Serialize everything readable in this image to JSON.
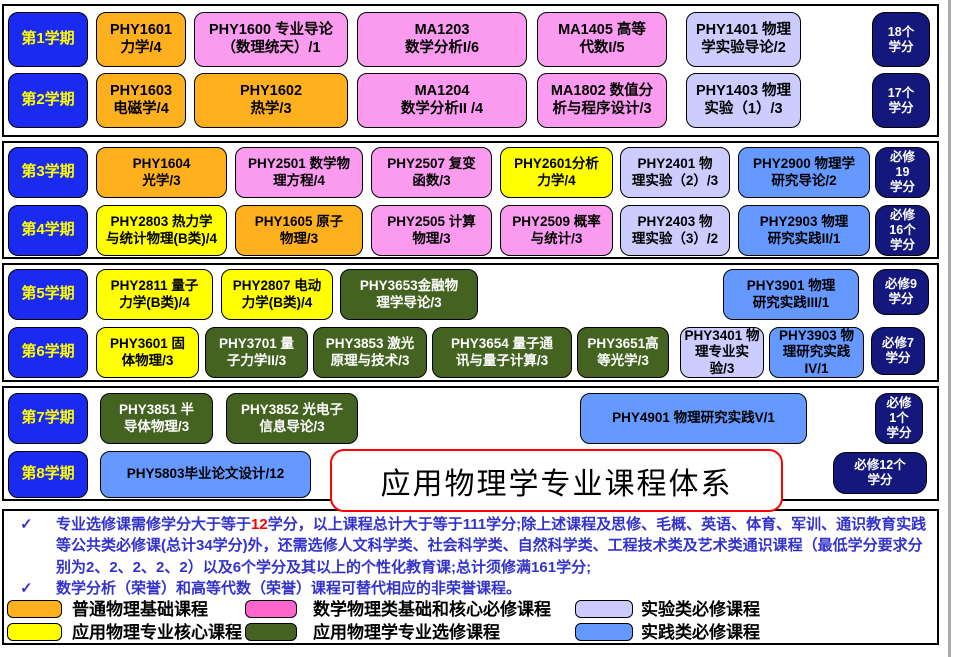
{
  "title": "应用物理学专业课程体系",
  "semesters": [
    {
      "label": "第1学期",
      "credit": "18个\n学分",
      "courses": [
        {
          "label": "PHY1601\n力学/4",
          "type": "orange"
        },
        {
          "label": "PHY1600 专业导论\n（数理统天）/1",
          "type": "pink"
        },
        {
          "label": "MA1203\n数学分析I/6",
          "type": "pink"
        },
        {
          "label": "MA1405 高等\n代数I/5",
          "type": "pink"
        },
        {
          "label": "PHY1401 物理\n学实验导论/2",
          "type": "lav"
        }
      ]
    },
    {
      "label": "第2学期",
      "credit": "17个\n学分",
      "courses": [
        {
          "label": "PHY1603\n电磁学/4",
          "type": "orange"
        },
        {
          "label": "PHY1602\n热学/3",
          "type": "orange"
        },
        {
          "label": "MA1204\n数学分析II /4",
          "type": "pink"
        },
        {
          "label": "MA1802 数值分\n析与程序设计/3",
          "type": "pink"
        },
        {
          "label": "PHY1403 物理\n实验（1）/3",
          "type": "lav"
        }
      ]
    },
    {
      "label": "第3学期",
      "credit": "必修\n19\n学分",
      "courses": [
        {
          "label": "PHY1604\n光学/3",
          "type": "orange"
        },
        {
          "label": "PHY2501 数学物\n理方程/4",
          "type": "pink"
        },
        {
          "label": "PHY2507 复变\n函数/3",
          "type": "pink"
        },
        {
          "label": "PHY2601分析\n力学/4",
          "type": "yellow"
        },
        {
          "label": "PHY2401 物\n理实验（2）/3",
          "type": "lav"
        },
        {
          "label": "PHY2900 物理学\n研究导论/2",
          "type": "blue"
        }
      ]
    },
    {
      "label": "第4学期",
      "credit": "必修\n16个\n学分",
      "courses": [
        {
          "label": "PHY2803 热力学\n与统计物理(B类)/4",
          "type": "yellow"
        },
        {
          "label": "PHY1605  原子\n物理/3",
          "type": "orange"
        },
        {
          "label": "PHY2505 计算\n物理/3",
          "type": "pink"
        },
        {
          "label": "PHY2509 概率\n与统计/3",
          "type": "pink"
        },
        {
          "label": "PHY2403 物\n理实验（3）/2",
          "type": "lav"
        },
        {
          "label": "PHY2903 物理\n研究实践II/1",
          "type": "blue"
        }
      ]
    },
    {
      "label": "第5学期",
      "credit": "必修9\n学分",
      "courses": [
        {
          "label": "PHY2811 量子\n力学(B类)/4",
          "type": "yellow"
        },
        {
          "label": "PHY2807 电动\n力学(B类)/4",
          "type": "yellow"
        },
        {
          "label": "PHY3653金融物\n理学导论/3",
          "type": "green"
        },
        {
          "label": "PHY3901 物理\n研究实践III/1",
          "type": "blue"
        }
      ]
    },
    {
      "label": "第6学期",
      "credit": "必修7\n学分",
      "courses": [
        {
          "label": "PHY3601 固\n体物理/3",
          "type": "yellow"
        },
        {
          "label": "PHY3701 量\n子力学II/3",
          "type": "green"
        },
        {
          "label": "PHY3853 激光\n原理与技术/3",
          "type": "green"
        },
        {
          "label": "PHY3654 量子通\n讯与量子计算/3",
          "type": "green"
        },
        {
          "label": "PHY3651高\n等光学/3",
          "type": "green"
        },
        {
          "label": "PHY3401 物\n理专业实验/3",
          "type": "lav"
        },
        {
          "label": "PHY3903 物\n理研究实践\nIV/1",
          "type": "blue"
        }
      ]
    },
    {
      "label": "第7学期",
      "credit": "必修\n1个\n学分",
      "courses": [
        {
          "label": "PHY3851 半\n导体物理/3",
          "type": "green"
        },
        {
          "label": "PHY3852 光电子\n信息导论/3",
          "type": "green"
        },
        {
          "label": "PHY4901 物理研究实践V/1",
          "type": "blue"
        }
      ]
    },
    {
      "label": "第8学期",
      "credit": "必修12个\n学分",
      "courses": [
        {
          "label": "PHY5803毕业论文设计/12",
          "type": "blue"
        }
      ]
    }
  ],
  "notes": [
    {
      "bullet": "✓",
      "segments": [
        {
          "text": "专业选修课需修学分大于等于",
          "red": false
        },
        {
          "text": "12",
          "red": true
        },
        {
          "text": "学分，以上课程总计大于等于111学分;除上述课程及思修、毛概、英语、体育、军训、通识教育实践等公共类必修课(总计34学分)外，还需选修人文科学类、社会科学类、自然科学类、工程技术类及艺术类通识课程（最低学分要求分别为2、2、2、2、2）以及6个学分及其以上的个性化教育课;总计须修满161学分;",
          "red": false
        }
      ]
    },
    {
      "bullet": "✓",
      "segments": [
        {
          "text": "数学分析（荣誉）和高等代数（荣誉）课程可替代相应的非荣誉课程。",
          "red": false
        }
      ]
    }
  ],
  "legend": [
    {
      "color": "#ffb01e",
      "label": "普通物理基础课程"
    },
    {
      "color": "#ff66cc",
      "label": "数学物理类基础和核心必修课程"
    },
    {
      "color": "#ccccff",
      "label": "实验类必修课程"
    },
    {
      "color": "#ffff00",
      "label": "应用物理专业核心课程"
    },
    {
      "color": "#446321",
      "label": "应用物理学专业选修课程"
    },
    {
      "color": "#6699ff",
      "label": "实践类必修课程"
    }
  ],
  "colors": {
    "semester_bg": "#1a2af0",
    "semester_text": "#ffff00",
    "credit_bg": "#14187d",
    "note_text": "#3333cc",
    "accent_red": "#ff0000"
  }
}
